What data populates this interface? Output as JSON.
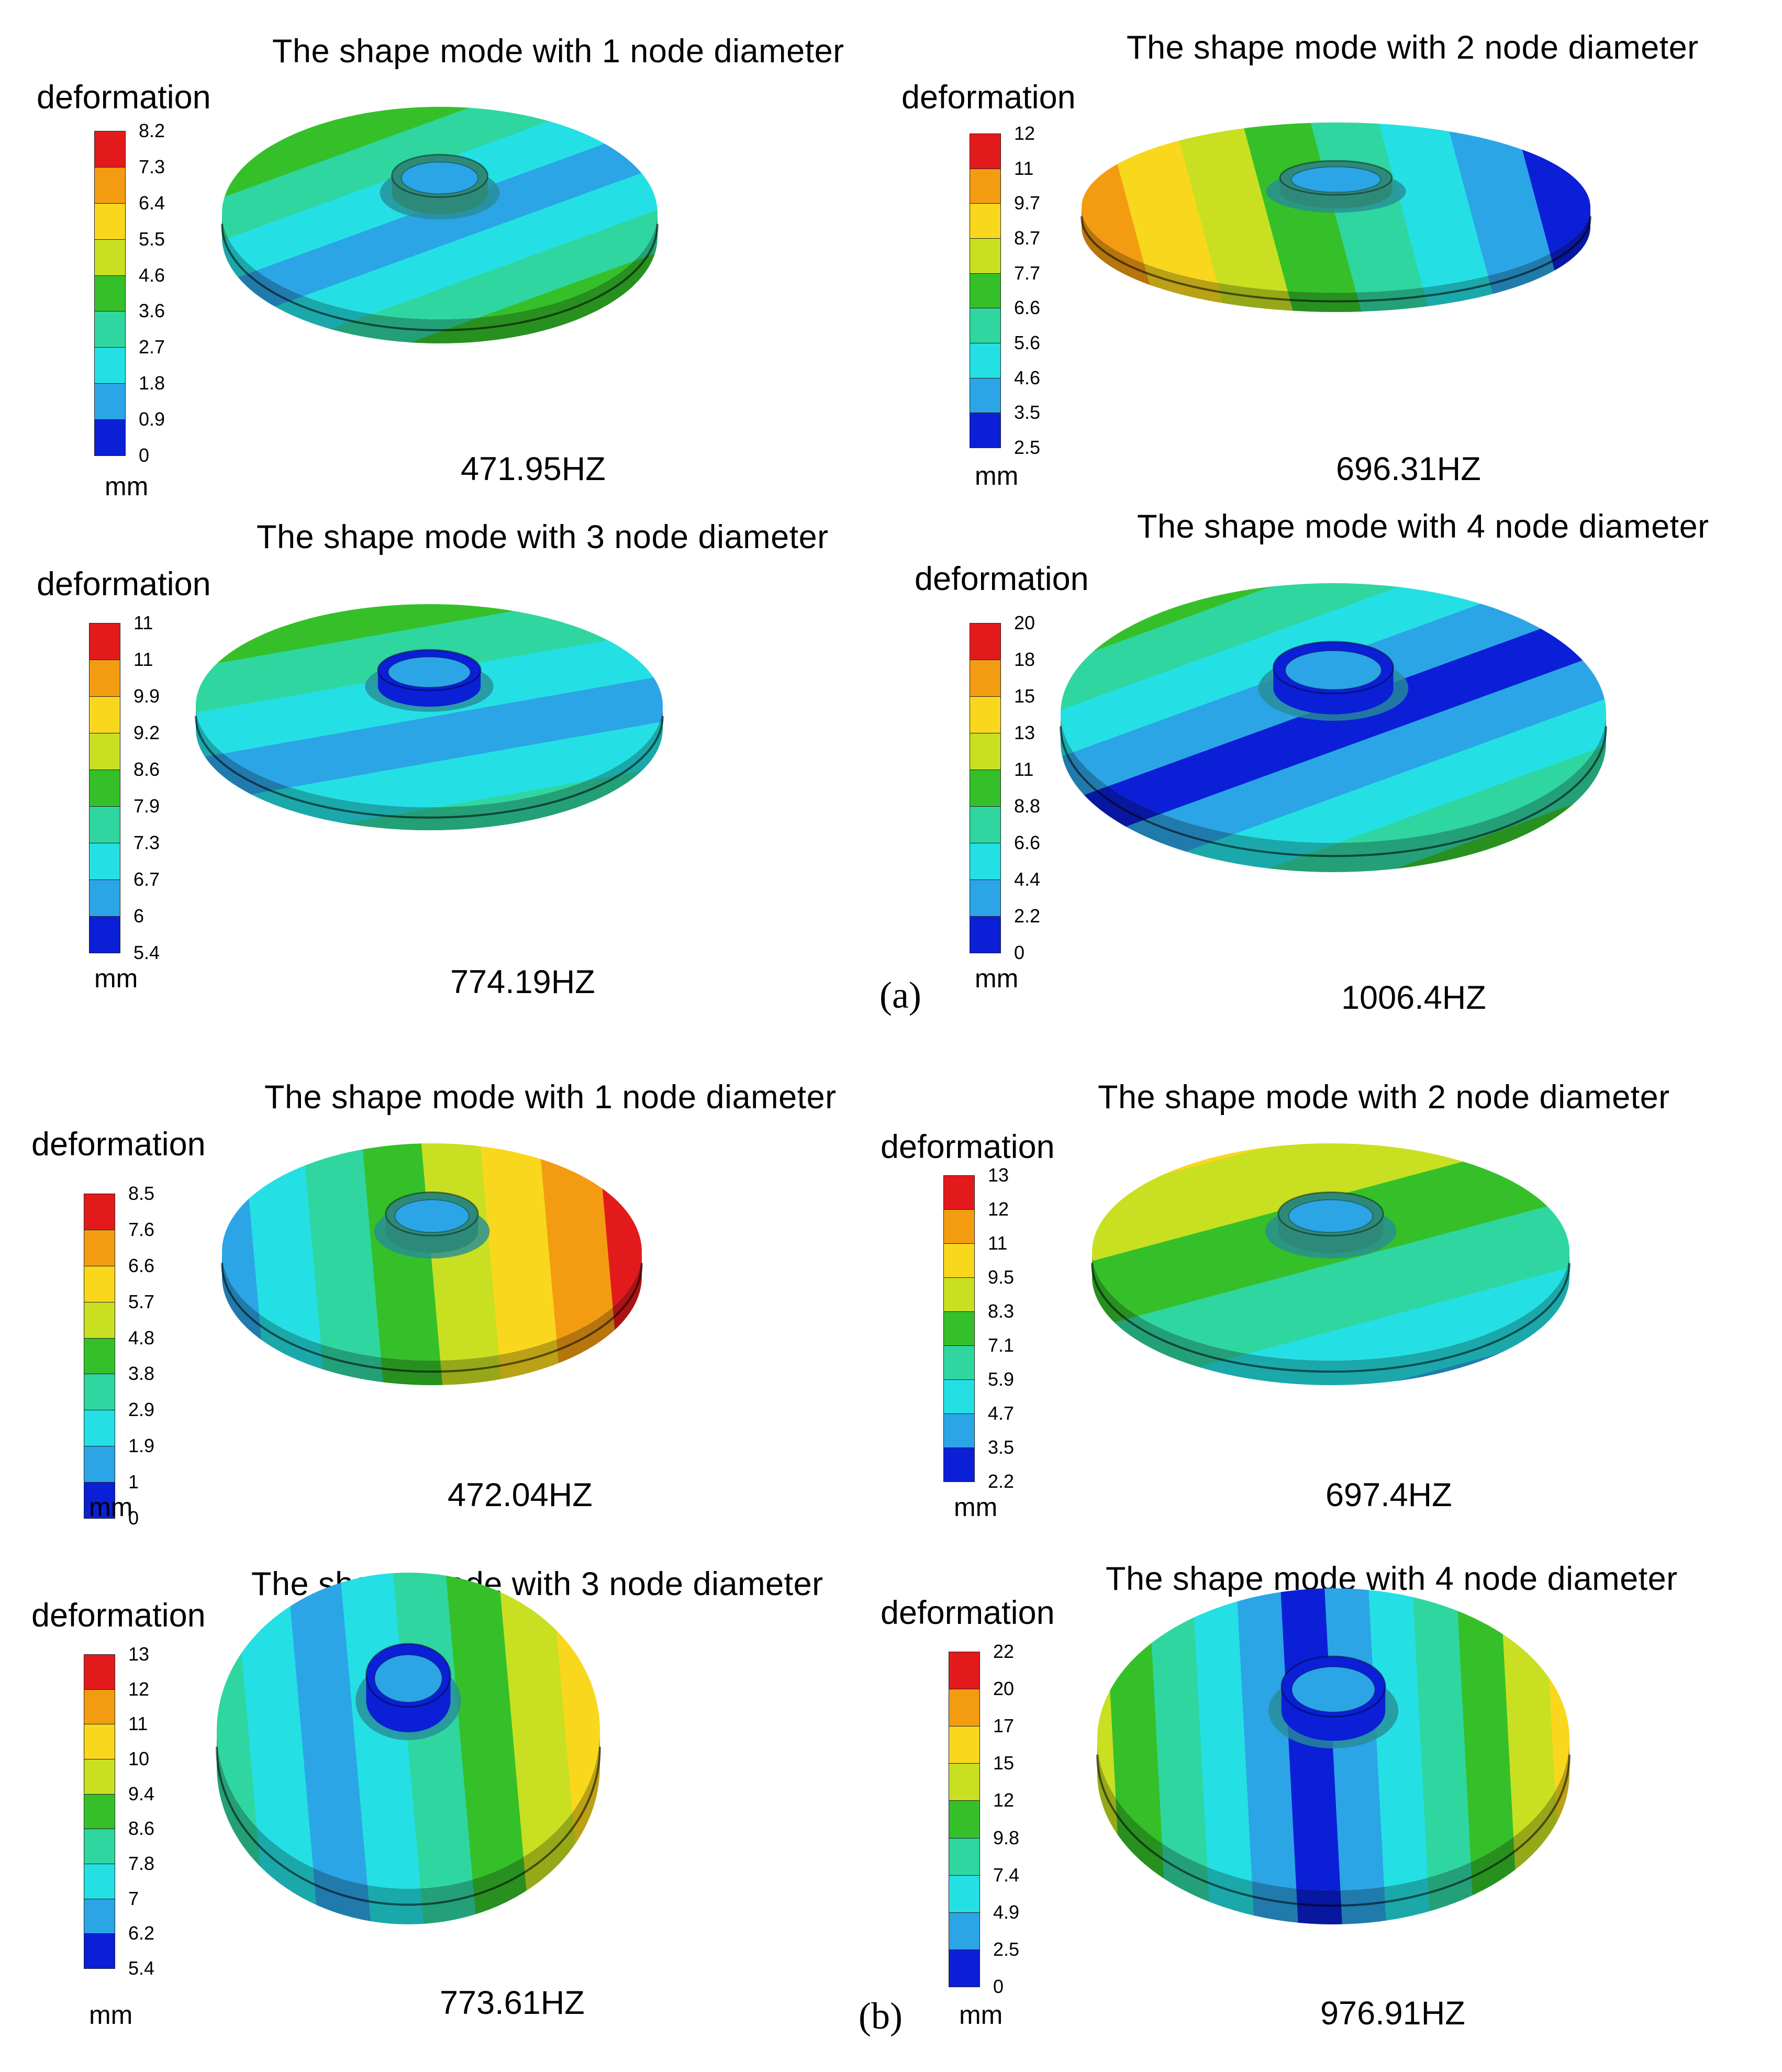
{
  "figure": {
    "caption_a": "(a)",
    "caption_b": "(b)",
    "panels": [
      {
        "title": "The shape mode with 1 node diameter",
        "legend_title": "deformation",
        "unit": "mm",
        "frequency": "471.95HZ",
        "ticks": [
          "8.2",
          "7.3",
          "6.4",
          "5.5",
          "4.6",
          "3.6",
          "2.7",
          "1.8",
          "0.9",
          "0"
        ],
        "pattern": "band1"
      },
      {
        "title": "The shape mode with 2 node diameter",
        "legend_title": "deformation",
        "unit": "mm",
        "frequency": "696.31HZ",
        "ticks": [
          "12",
          "11",
          "9.7",
          "8.7",
          "7.7",
          "6.6",
          "5.6",
          "4.6",
          "3.5",
          "2.5"
        ],
        "pattern": "band2"
      },
      {
        "title": "The shape mode with 3 node diameter",
        "legend_title": "deformation",
        "unit": "mm",
        "frequency": "774.19HZ",
        "ticks": [
          "11",
          "11",
          "9.9",
          "9.2",
          "8.6",
          "7.9",
          "7.3",
          "6.7",
          "6",
          "5.4"
        ],
        "pattern": "band3"
      },
      {
        "title": "The shape mode with 4 node diameter",
        "legend_title": "deformation",
        "unit": "mm",
        "frequency": "1006.4HZ",
        "ticks": [
          "20",
          "18",
          "15",
          "13",
          "11",
          "8.8",
          "6.6",
          "4.4",
          "2.2",
          "0"
        ],
        "pattern": "band4"
      },
      {
        "title": "The shape mode with 1 node diameter",
        "legend_title": "deformation",
        "unit": "mm",
        "frequency": "472.04HZ",
        "ticks": [
          "8.5",
          "7.6",
          "6.6",
          "5.7",
          "4.8",
          "3.8",
          "2.9",
          "1.9",
          "1",
          "0"
        ],
        "pattern": "band5"
      },
      {
        "title": "The shape mode with 2 node diameter",
        "legend_title": "deformation",
        "unit": "mm",
        "frequency": "697.4HZ",
        "ticks": [
          "13",
          "12",
          "11",
          "9.5",
          "8.3",
          "7.1",
          "5.9",
          "4.7",
          "3.5",
          "2.2"
        ],
        "pattern": "band6"
      },
      {
        "title": "The shape mode with 3 node diameter",
        "legend_title": "deformation",
        "unit": "mm",
        "frequency": "773.61HZ",
        "ticks": [
          "13",
          "12",
          "11",
          "10",
          "9.4",
          "8.6",
          "7.8",
          "7",
          "6.2",
          "5.4"
        ],
        "pattern": "band7"
      },
      {
        "title": "The shape mode with 4 node diameter",
        "legend_title": "deformation",
        "unit": "mm",
        "frequency": "976.91HZ",
        "ticks": [
          "22",
          "20",
          "17",
          "15",
          "12",
          "9.8",
          "7.4",
          "4.9",
          "2.5",
          "0"
        ],
        "pattern": "band8"
      }
    ]
  },
  "colors": {
    "legend": [
      "#e31a1c",
      "#f39c12",
      "#f9d71c",
      "#c8e021",
      "#35c02a",
      "#2fd6a0",
      "#24e0e4",
      "#2ba5e6",
      "#0a1fd6"
    ]
  }
}
